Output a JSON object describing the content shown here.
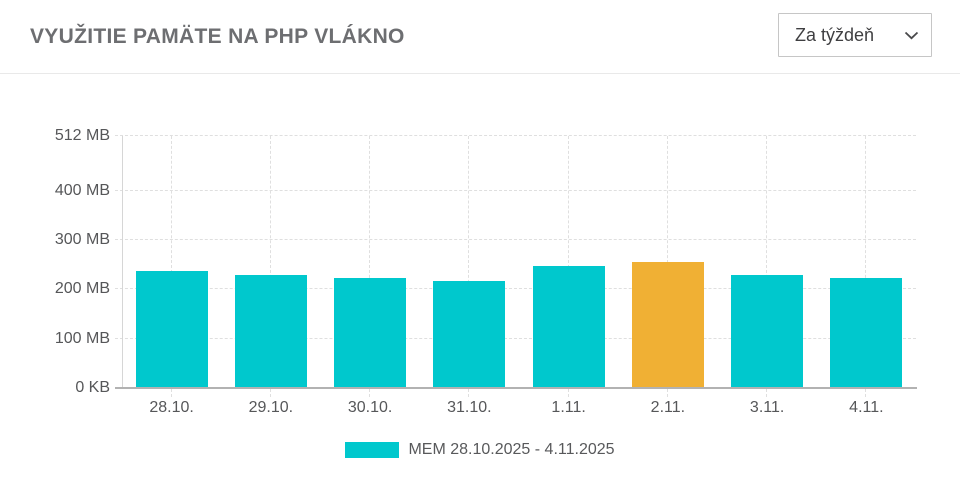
{
  "header": {
    "title": "VYUŽITIE PAMÄTE NA PHP VLÁKNO",
    "period_select": {
      "value": "Za týždeň",
      "icon": "chevron-down-icon"
    }
  },
  "chart_data": {
    "type": "bar",
    "title": "VYUŽITIE PAMÄTE NA PHP VLÁKNO",
    "categories": [
      "28.10.",
      "29.10.",
      "30.10.",
      "31.10.",
      "1.11.",
      "2.11.",
      "3.11.",
      "4.11."
    ],
    "series": [
      {
        "name": "MEM 28.10.2025 - 4.11.2025",
        "unit": "MB",
        "values": [
          238,
          229,
          223,
          216,
          247,
          255,
          230,
          224
        ]
      }
    ],
    "highlight_index": 5,
    "highlight_category": "2.11.",
    "ylim": [
      0,
      512
    ],
    "y_ticks": [
      {
        "value": 0,
        "label": "0 KB"
      },
      {
        "value": 100,
        "label": "100 MB"
      },
      {
        "value": 200,
        "label": "200 MB"
      },
      {
        "value": 300,
        "label": "300 MB"
      },
      {
        "value": 400,
        "label": "400 MB"
      },
      {
        "value": 512,
        "label": "512 MB"
      }
    ],
    "grid": true,
    "legend": {
      "position": "bottom-center",
      "label": "MEM 28.10.2025 - 4.11.2025",
      "swatch_color": "#00c8cd"
    },
    "colors": {
      "bar": "#00c8cd",
      "highlight": "#f0b034",
      "grid": "#dfdfdf",
      "axis": "#b2b2b2",
      "text": "#565759",
      "title": "#6d6e71"
    }
  }
}
